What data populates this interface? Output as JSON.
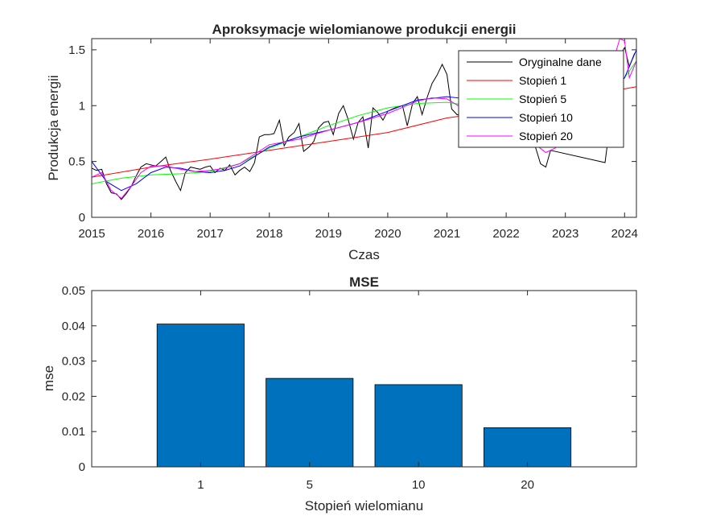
{
  "chart_data": [
    {
      "type": "line",
      "title": "Aproksymacje wielomianowe produkcji energii",
      "xlabel": "Czas",
      "ylabel": "Produkcja energii",
      "xlim": [
        2015,
        2024.2
      ],
      "ylim": [
        0,
        1.6
      ],
      "xticks": [
        2015,
        2016,
        2017,
        2018,
        2019,
        2020,
        2021,
        2022,
        2023,
        2024
      ],
      "yticks": [
        0,
        0.5,
        1,
        1.5
      ],
      "legend_position": "top-right",
      "series": [
        {
          "name": "Oryginalne dane",
          "color": "#000000",
          "x": [
            2015.0,
            2015.08,
            2015.17,
            2015.25,
            2015.33,
            2015.42,
            2015.5,
            2015.58,
            2015.67,
            2015.75,
            2015.83,
            2015.92,
            2016.0,
            2016.08,
            2016.17,
            2016.25,
            2016.33,
            2016.42,
            2016.5,
            2016.58,
            2016.67,
            2016.75,
            2016.83,
            2016.92,
            2017.0,
            2017.08,
            2017.17,
            2017.25,
            2017.33,
            2017.42,
            2017.5,
            2017.58,
            2017.67,
            2017.75,
            2017.83,
            2017.92,
            2018.0,
            2018.08,
            2018.17,
            2018.25,
            2018.33,
            2018.42,
            2018.5,
            2018.58,
            2018.67,
            2018.75,
            2018.83,
            2018.92,
            2019.0,
            2019.08,
            2019.17,
            2019.25,
            2019.33,
            2019.42,
            2019.5,
            2019.58,
            2019.67,
            2019.75,
            2019.83,
            2019.92,
            2020.0,
            2020.08,
            2020.17,
            2020.25,
            2020.33,
            2020.42,
            2020.5,
            2020.58,
            2020.67,
            2020.75,
            2020.83,
            2020.92,
            2021.0,
            2021.08,
            2021.17,
            2022.42,
            2022.5,
            2022.58,
            2022.67,
            2022.75,
            2023.67,
            2023.75,
            2023.83,
            2023.92,
            2024.0,
            2024.08,
            2024.17
          ],
          "y": [
            0.44,
            0.42,
            0.43,
            0.3,
            0.22,
            0.21,
            0.16,
            0.21,
            0.28,
            0.37,
            0.45,
            0.48,
            0.47,
            0.46,
            0.5,
            0.54,
            0.42,
            0.32,
            0.24,
            0.4,
            0.45,
            0.44,
            0.43,
            0.45,
            0.46,
            0.4,
            0.44,
            0.42,
            0.47,
            0.38,
            0.42,
            0.45,
            0.41,
            0.49,
            0.72,
            0.74,
            0.74,
            0.75,
            0.87,
            0.64,
            0.72,
            0.76,
            0.84,
            0.59,
            0.63,
            0.68,
            0.8,
            0.85,
            0.86,
            0.74,
            0.93,
            1.0,
            0.88,
            0.7,
            0.85,
            0.9,
            0.62,
            0.98,
            0.94,
            0.87,
            0.95,
            0.97,
            0.99,
            1.0,
            0.82,
            1.02,
            1.08,
            0.92,
            1.08,
            1.2,
            1.27,
            1.37,
            1.28,
            0.97,
            0.92,
            0.75,
            0.62,
            0.48,
            0.45,
            0.6,
            0.49,
            0.82,
            1.25,
            1.45,
            1.52,
            1.35,
            1.47
          ]
        },
        {
          "name": "Stopień 1",
          "color": "#ff0000",
          "x": [
            2015.0,
            2016.0,
            2017.0,
            2018.0,
            2019.0,
            2020.0,
            2021.0,
            2022.0,
            2023.0,
            2024.0,
            2024.2
          ],
          "y": [
            0.36,
            0.45,
            0.52,
            0.6,
            0.68,
            0.76,
            0.89,
            0.96,
            1.03,
            1.15,
            1.17
          ]
        },
        {
          "name": "Stopień 5",
          "color": "#00ff00",
          "x": [
            2015.0,
            2015.5,
            2016.0,
            2016.5,
            2017.0,
            2017.5,
            2018.0,
            2018.5,
            2019.0,
            2019.5,
            2020.0,
            2020.5,
            2021.0,
            2021.5,
            2022.0,
            2022.5,
            2023.0,
            2023.5,
            2024.0,
            2024.2
          ],
          "y": [
            0.3,
            0.35,
            0.38,
            0.39,
            0.41,
            0.48,
            0.62,
            0.72,
            0.82,
            0.91,
            0.98,
            1.02,
            1.03,
            0.99,
            0.94,
            0.88,
            0.89,
            1.0,
            1.25,
            1.4
          ]
        },
        {
          "name": "Stopień 10",
          "color": "#0000ff",
          "x": [
            2015.0,
            2015.25,
            2015.5,
            2015.75,
            2016.0,
            2016.25,
            2016.5,
            2016.75,
            2017.0,
            2017.25,
            2017.5,
            2018.0,
            2018.5,
            2019.0,
            2019.5,
            2020.0,
            2020.5,
            2021.0,
            2021.5,
            2022.0,
            2022.5,
            2023.0,
            2023.5,
            2024.0,
            2024.2
          ],
          "y": [
            0.5,
            0.32,
            0.24,
            0.3,
            0.4,
            0.45,
            0.44,
            0.41,
            0.4,
            0.42,
            0.46,
            0.63,
            0.72,
            0.78,
            0.85,
            0.95,
            1.05,
            1.08,
            1.05,
            0.92,
            0.75,
            0.7,
            0.92,
            1.25,
            1.5
          ]
        },
        {
          "name": "Stopień 20",
          "color": "#ff00ff",
          "x": [
            2015.0,
            2015.17,
            2015.33,
            2015.5,
            2015.67,
            2015.83,
            2016.0,
            2016.25,
            2016.5,
            2016.75,
            2017.0,
            2017.25,
            2017.5,
            2018.0,
            2018.5,
            2019.0,
            2019.5,
            2020.0,
            2020.5,
            2020.75,
            2021.0,
            2021.25,
            2022.5,
            2022.67,
            2022.83,
            2023.0,
            2023.5,
            2023.75,
            2023.92,
            2024.0,
            2024.08,
            2024.2
          ],
          "y": [
            0.36,
            0.4,
            0.24,
            0.17,
            0.28,
            0.4,
            0.46,
            0.46,
            0.43,
            0.41,
            0.42,
            0.44,
            0.48,
            0.65,
            0.7,
            0.78,
            0.85,
            0.93,
            1.04,
            1.07,
            1.06,
            0.98,
            0.65,
            0.58,
            0.62,
            0.72,
            0.95,
            1.3,
            1.6,
            1.58,
            1.25,
            1.4
          ]
        }
      ]
    },
    {
      "type": "bar",
      "title": "MSE",
      "xlabel": "Stopień wielomianu",
      "ylabel": "mse",
      "categories": [
        "1",
        "5",
        "10",
        "20"
      ],
      "values": [
        0.0405,
        0.0251,
        0.0233,
        0.0111
      ],
      "ylim": [
        0,
        0.05
      ],
      "yticks": [
        "0",
        "0.01",
        "0.02",
        "0.03",
        "0.04",
        "0.05"
      ],
      "bar_color": "#0072bd"
    }
  ]
}
